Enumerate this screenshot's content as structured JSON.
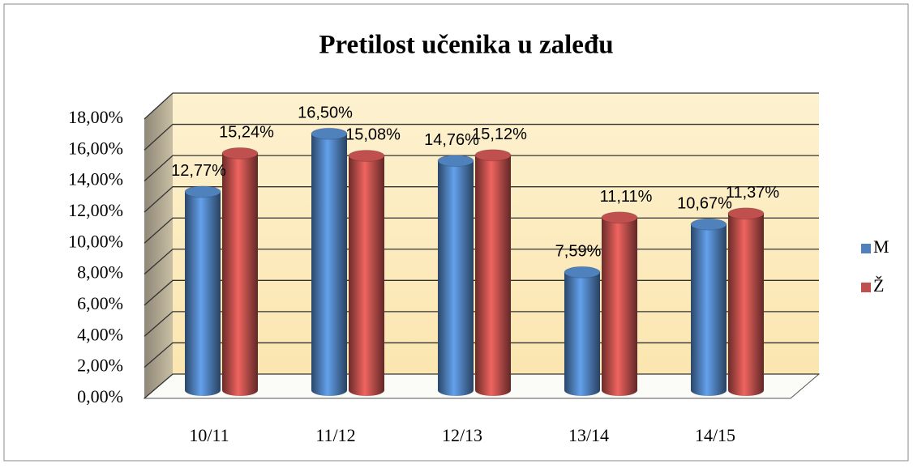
{
  "chart_data": {
    "type": "bar3d",
    "title": "Pretilost učenika u zaleđu",
    "categories": [
      "10/11",
      "11/12",
      "12/13",
      "13/14",
      "14/15"
    ],
    "series": [
      {
        "name": "M",
        "color": "#4f81bd",
        "values": [
          12.77,
          16.5,
          14.76,
          7.59,
          10.67
        ],
        "value_labels": [
          "12,77%",
          "16,50%",
          "14,76%",
          "7,59%",
          "10,67%"
        ]
      },
      {
        "name": "Ž",
        "color": "#c0504d",
        "values": [
          15.24,
          15.08,
          15.12,
          11.11,
          11.37
        ],
        "value_labels": [
          "15,24%",
          "15,08%",
          "15,12%",
          "11,11%",
          "11,37%"
        ]
      }
    ],
    "ylim": [
      0,
      18
    ],
    "yticks": [
      {
        "value": 0,
        "label": "0,00%"
      },
      {
        "value": 2,
        "label": "2,00%"
      },
      {
        "value": 4,
        "label": "4,00%"
      },
      {
        "value": 6,
        "label": "6,00%"
      },
      {
        "value": 8,
        "label": "8,00%"
      },
      {
        "value": 10,
        "label": "10,00%"
      },
      {
        "value": 12,
        "label": "12,00%"
      },
      {
        "value": 14,
        "label": "14,00%"
      },
      {
        "value": 16,
        "label": "16,00%"
      },
      {
        "value": 18,
        "label": "18,00%"
      }
    ],
    "grid": true,
    "legend": "right"
  }
}
